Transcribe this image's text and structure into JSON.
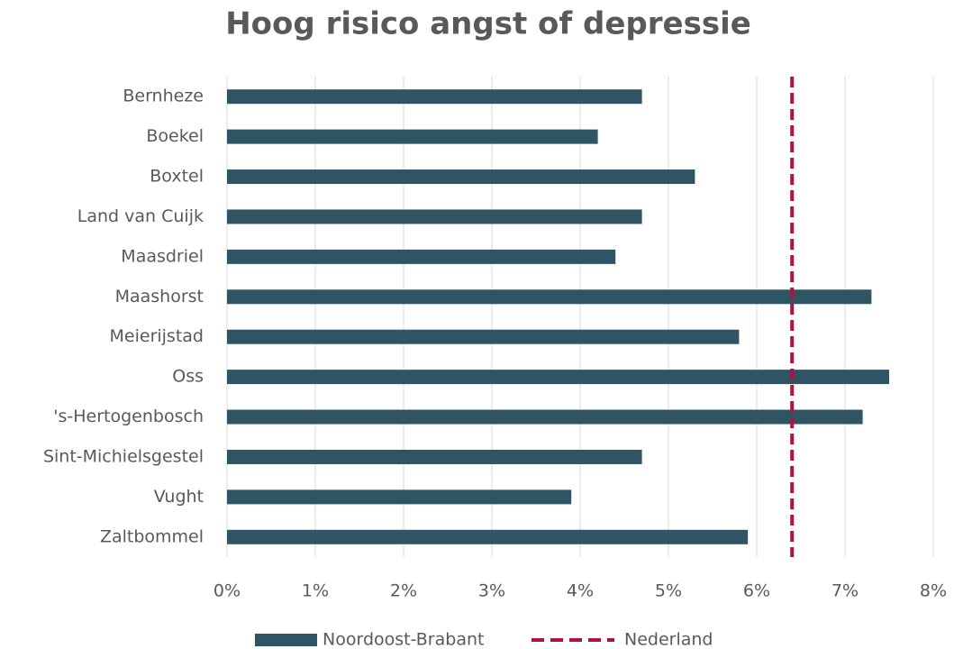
{
  "chart_data": {
    "type": "barh",
    "title": "Hoog risico angst of depressie",
    "categories": [
      "Bernheze",
      "Boekel",
      "Boxtel",
      "Land van Cuijk",
      "Maasdriel",
      "Maashorst",
      "Meierijstad",
      "Oss",
      "'s-Hertogenbosch",
      "Sint-Michielsgestel",
      "Vught",
      "Zaltbommel"
    ],
    "series": [
      {
        "name": "Noordoost-Brabant",
        "color": "#2f5564",
        "values": [
          4.7,
          4.2,
          5.3,
          4.7,
          4.4,
          7.3,
          5.8,
          7.5,
          7.2,
          4.7,
          3.9,
          5.9
        ]
      }
    ],
    "reference_line": {
      "name": "Nederland",
      "value": 6.4,
      "color": "#b5103c",
      "style": "dashed"
    },
    "xlim": [
      0,
      8
    ],
    "xticks": [
      {
        "value": 0,
        "label": "0%"
      },
      {
        "value": 1,
        "label": "1%"
      },
      {
        "value": 2,
        "label": "2%"
      },
      {
        "value": 3,
        "label": "3%"
      },
      {
        "value": 4,
        "label": "4%"
      },
      {
        "value": 5,
        "label": "5%"
      },
      {
        "value": 6,
        "label": "6%"
      },
      {
        "value": 7,
        "label": "7%"
      },
      {
        "value": 8,
        "label": "8%"
      }
    ],
    "grid": true,
    "legend": "bottom"
  }
}
